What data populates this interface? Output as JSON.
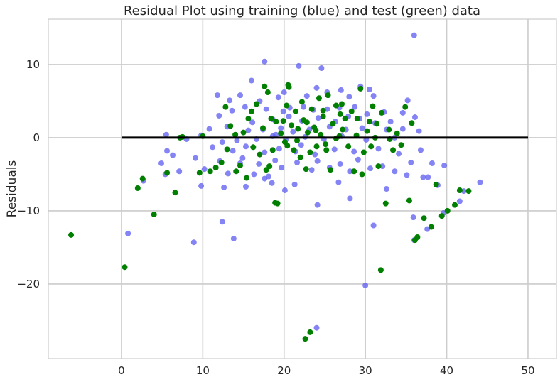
{
  "chart_data": {
    "type": "scatter",
    "title": "Residual Plot using training (blue) and test (green) data",
    "xlabel": "",
    "ylabel": "Residuals",
    "xlim": [
      -9,
      53.5
    ],
    "ylim": [
      -30.2,
      16.2
    ],
    "xticks": [
      0,
      10,
      20,
      30,
      40,
      50
    ],
    "yticks": [
      -20,
      -10,
      0,
      10
    ],
    "grid": true,
    "hline": {
      "y": 0,
      "x_from": 0,
      "x_to": 50,
      "color": "#000000"
    },
    "series": [
      {
        "color": "#5b5bf0",
        "points": [
          [
            36.0,
            14.0
          ],
          [
            17.6,
            10.4
          ],
          [
            21.8,
            9.8
          ],
          [
            24.6,
            9.5
          ],
          [
            16.0,
            7.8
          ],
          [
            29.4,
            7.0
          ],
          [
            27.0,
            6.5
          ],
          [
            30.5,
            6.6
          ],
          [
            24.0,
            6.8
          ],
          [
            20.0,
            6.2
          ],
          [
            11.8,
            5.8
          ],
          [
            13.3,
            5.1
          ],
          [
            14.6,
            5.8
          ],
          [
            17.0,
            5.0
          ],
          [
            22.8,
            5.7
          ],
          [
            25.3,
            6.2
          ],
          [
            28.0,
            5.6
          ],
          [
            31.0,
            5.7
          ],
          [
            35.2,
            5.1
          ],
          [
            19.3,
            5.5
          ],
          [
            12.0,
            3.0
          ],
          [
            13.6,
            3.7
          ],
          [
            15.2,
            4.2
          ],
          [
            17.8,
            3.9
          ],
          [
            19.9,
            3.6
          ],
          [
            20.7,
            4.1
          ],
          [
            22.4,
            4.2
          ],
          [
            23.6,
            3.8
          ],
          [
            25.3,
            3.9
          ],
          [
            26.8,
            4.1
          ],
          [
            28.7,
            4.2
          ],
          [
            30.2,
            3.2
          ],
          [
            32.3,
            3.5
          ],
          [
            34.6,
            3.4
          ],
          [
            36.1,
            2.8
          ],
          [
            16.1,
            2.1
          ],
          [
            18.6,
            2.5
          ],
          [
            20.6,
            2.9
          ],
          [
            22.2,
            2.3
          ],
          [
            24.2,
            2.7
          ],
          [
            26.3,
            2.2
          ],
          [
            29.3,
            2.6
          ],
          [
            31.2,
            2.0
          ],
          [
            33.1,
            2.2
          ],
          [
            10.8,
            1.2
          ],
          [
            13.0,
            1.5
          ],
          [
            15.6,
            1.0
          ],
          [
            17.4,
            1.1
          ],
          [
            19.6,
            1.3
          ],
          [
            21.1,
            0.8
          ],
          [
            23.1,
            1.1
          ],
          [
            25.6,
            1.5
          ],
          [
            27.6,
            1.1
          ],
          [
            29.6,
            1.3
          ],
          [
            32.6,
            1.1
          ],
          [
            34.6,
            1.2
          ],
          [
            36.6,
            0.9
          ],
          [
            5.5,
            0.4
          ],
          [
            8.0,
            -0.2
          ],
          [
            9.8,
            0.3
          ],
          [
            12.4,
            -0.6
          ],
          [
            14.2,
            -0.4
          ],
          [
            16.6,
            -0.2
          ],
          [
            18.6,
            0.2
          ],
          [
            20.2,
            -0.3
          ],
          [
            22.6,
            0.1
          ],
          [
            24.9,
            -0.2
          ],
          [
            27.1,
            0.2
          ],
          [
            30.1,
            -0.3
          ],
          [
            33.6,
            0.0
          ],
          [
            11.2,
            -1.3
          ],
          [
            13.7,
            -1.8
          ],
          [
            15.3,
            -1.2
          ],
          [
            17.6,
            -2.0
          ],
          [
            19.4,
            -1.5
          ],
          [
            21.4,
            -1.9
          ],
          [
            23.8,
            -2.3
          ],
          [
            26.2,
            -1.6
          ],
          [
            28.6,
            -1.9
          ],
          [
            31.6,
            -1.5
          ],
          [
            34.1,
            -2.2
          ],
          [
            36.8,
            -1.7
          ],
          [
            5.6,
            -1.8
          ],
          [
            6.3,
            -2.4
          ],
          [
            9.1,
            -2.8
          ],
          [
            12.1,
            -3.2
          ],
          [
            14.6,
            -3.5
          ],
          [
            16.9,
            -3.6
          ],
          [
            18.9,
            -3.1
          ],
          [
            21.6,
            -3.4
          ],
          [
            24.1,
            -3.2
          ],
          [
            26.9,
            -3.6
          ],
          [
            29.1,
            -3.0
          ],
          [
            32.1,
            -3.9
          ],
          [
            35.6,
            -3.4
          ],
          [
            38.2,
            -3.5
          ],
          [
            4.9,
            -3.5
          ],
          [
            7.1,
            -4.6
          ],
          [
            10.2,
            -4.3
          ],
          [
            13.1,
            -4.9
          ],
          [
            16.3,
            -5.0
          ],
          [
            18.1,
            -5.3
          ],
          [
            19.7,
            -4.1
          ],
          [
            23.4,
            -4.4
          ],
          [
            25.6,
            -4.1
          ],
          [
            28.1,
            -4.6
          ],
          [
            30.6,
            -4.2
          ],
          [
            33.6,
            -4.6
          ],
          [
            35.1,
            -5.1
          ],
          [
            37.1,
            -5.4
          ],
          [
            39.7,
            -3.8
          ],
          [
            2.7,
            -5.9
          ],
          [
            5.4,
            -5.0
          ],
          [
            9.8,
            -6.6
          ],
          [
            12.6,
            -6.8
          ],
          [
            15.3,
            -6.7
          ],
          [
            17.6,
            -5.6
          ],
          [
            20.1,
            -7.2
          ],
          [
            28.1,
            -8.3
          ],
          [
            32.6,
            -7.0
          ],
          [
            37.7,
            -5.4
          ],
          [
            38.9,
            -6.5
          ],
          [
            42.1,
            -7.3
          ],
          [
            44.1,
            -6.1
          ],
          [
            41.6,
            -8.7
          ],
          [
            39.6,
            -10.3
          ],
          [
            37.6,
            -12.5
          ],
          [
            35.9,
            -10.9
          ],
          [
            31.0,
            -12.0
          ],
          [
            36.0,
            -14.0
          ],
          [
            0.8,
            -13.1
          ],
          [
            8.9,
            -14.3
          ],
          [
            12.4,
            -11.5
          ],
          [
            13.8,
            -13.8
          ],
          [
            24.1,
            -9.2
          ],
          [
            30.0,
            -20.2
          ],
          [
            24.0,
            -26.0
          ],
          [
            18.5,
            -6.2
          ],
          [
            21.3,
            -6.4
          ],
          [
            26.7,
            -6.1
          ],
          [
            14.9,
            -2.8
          ],
          [
            22.1,
            -1.0
          ],
          [
            27.9,
            2.9
          ],
          [
            19.0,
            0.4
          ]
        ]
      },
      {
        "color": "#007f00",
        "points": [
          [
            -6.2,
            -13.3
          ],
          [
            0.4,
            -17.7
          ],
          [
            2.0,
            -6.9
          ],
          [
            2.6,
            -5.6
          ],
          [
            4.0,
            -10.5
          ],
          [
            5.6,
            -4.8
          ],
          [
            6.6,
            -7.5
          ],
          [
            7.2,
            0.0
          ],
          [
            9.6,
            -4.8
          ],
          [
            10.0,
            0.2
          ],
          [
            10.9,
            -4.6
          ],
          [
            11.6,
            -4.1
          ],
          [
            12.3,
            -3.4
          ],
          [
            13.0,
            -1.6
          ],
          [
            13.4,
            1.6
          ],
          [
            14.0,
            0.4
          ],
          [
            14.6,
            -3.8
          ],
          [
            15.0,
            0.7
          ],
          [
            15.4,
            -5.5
          ],
          [
            15.6,
            2.6
          ],
          [
            16.2,
            -1.3
          ],
          [
            16.6,
            4.6
          ],
          [
            17.0,
            -2.3
          ],
          [
            17.4,
            1.3
          ],
          [
            17.8,
            -4.4
          ],
          [
            18.0,
            6.2
          ],
          [
            18.4,
            2.6
          ],
          [
            18.6,
            -1.7
          ],
          [
            18.9,
            -8.9
          ],
          [
            19.2,
            -9.0
          ],
          [
            19.6,
            0.6
          ],
          [
            19.9,
            2.3
          ],
          [
            20.1,
            -0.6
          ],
          [
            20.3,
            4.4
          ],
          [
            20.6,
            6.9
          ],
          [
            20.9,
            1.7
          ],
          [
            21.2,
            -1.7
          ],
          [
            21.4,
            3.6
          ],
          [
            21.7,
            1.2
          ],
          [
            22.0,
            -2.7
          ],
          [
            22.2,
            4.9
          ],
          [
            22.4,
            2.4
          ],
          [
            22.7,
            -4.3
          ],
          [
            22.9,
            0.7
          ],
          [
            23.2,
            -2.0
          ],
          [
            23.4,
            3.9
          ],
          [
            23.7,
            1.4
          ],
          [
            24.0,
            -1.2
          ],
          [
            24.3,
            5.4
          ],
          [
            24.5,
            0.4
          ],
          [
            24.8,
            2.9
          ],
          [
            25.1,
            -0.9
          ],
          [
            25.4,
            5.8
          ],
          [
            25.7,
            -4.4
          ],
          [
            26.0,
            1.9
          ],
          [
            26.4,
            4.4
          ],
          [
            26.8,
            0.2
          ],
          [
            27.1,
            4.6
          ],
          [
            27.5,
            2.6
          ],
          [
            27.9,
            -1.2
          ],
          [
            28.3,
            3.6
          ],
          [
            28.6,
            -4.6
          ],
          [
            29.0,
            2.6
          ],
          [
            29.4,
            6.7
          ],
          [
            29.8,
            -2.0
          ],
          [
            30.2,
            0.9
          ],
          [
            30.5,
            2.2
          ],
          [
            30.9,
            4.3
          ],
          [
            31.2,
            0.0
          ],
          [
            31.6,
            -3.9
          ],
          [
            32.0,
            3.4
          ],
          [
            32.5,
            -9.0
          ],
          [
            32.9,
            1.1
          ],
          [
            33.4,
            -1.7
          ],
          [
            33.9,
            0.6
          ],
          [
            34.4,
            -1.0
          ],
          [
            34.9,
            4.2
          ],
          [
            35.4,
            -8.6
          ],
          [
            35.7,
            2.0
          ],
          [
            36.1,
            -14.0
          ],
          [
            36.4,
            -13.6
          ],
          [
            37.2,
            -11.0
          ],
          [
            38.1,
            -12.2
          ],
          [
            38.7,
            -6.4
          ],
          [
            39.4,
            -10.7
          ],
          [
            40.1,
            -10.0
          ],
          [
            41.0,
            -9.2
          ],
          [
            41.6,
            -7.2
          ],
          [
            42.7,
            -7.3
          ],
          [
            31.9,
            -18.1
          ],
          [
            23.2,
            -26.6
          ],
          [
            22.6,
            -27.5
          ],
          [
            7.5,
            0.1
          ],
          [
            17.6,
            7.0
          ],
          [
            19.0,
            2.2
          ],
          [
            21.6,
            -0.4
          ],
          [
            24.8,
            3.7
          ],
          [
            26.4,
            -0.1
          ],
          [
            28.9,
            0.3
          ],
          [
            29.6,
            -5.0
          ],
          [
            18.2,
            -3.9
          ],
          [
            20.4,
            -1.1
          ],
          [
            16.0,
            3.6
          ],
          [
            22.8,
            2.1
          ],
          [
            25.2,
            -1.7
          ],
          [
            27.2,
            1.1
          ],
          [
            30.7,
            -1.2
          ],
          [
            33.0,
            -0.2
          ],
          [
            12.8,
            4.2
          ],
          [
            14.1,
            -4.6
          ],
          [
            20.5,
            7.2
          ],
          [
            23.9,
            1.0
          ],
          [
            26.9,
            3.2
          ],
          [
            31.4,
            1.9
          ]
        ]
      }
    ]
  }
}
